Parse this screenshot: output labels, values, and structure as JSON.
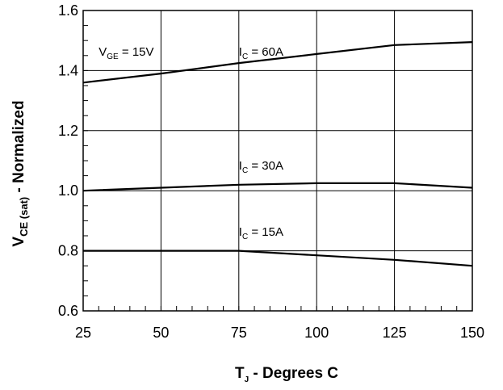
{
  "chart_data": {
    "type": "line",
    "xlabel": {
      "main": "T",
      "sub": "J",
      "rest": " - Degrees C"
    },
    "ylabel": {
      "main": "V",
      "sub": "CE (sat)",
      "rest": " - Normalized"
    },
    "xlim": [
      25,
      150
    ],
    "ylim": [
      0.6,
      1.6
    ],
    "xticks": [
      25,
      50,
      75,
      100,
      125,
      150
    ],
    "yticks": [
      0.6,
      0.8,
      1.0,
      1.2,
      1.4,
      1.6
    ],
    "ytick_labels": [
      "0.6",
      "0.8",
      "1.0",
      "1.2",
      "1.4",
      "1.6"
    ],
    "xminor_step": 5,
    "yminor_step": 0.05,
    "grid": true,
    "annotations": [
      {
        "id": "vge",
        "main": "V",
        "sub": "GE",
        "rest": " = 15V",
        "x": 30,
        "y": 1.45
      },
      {
        "id": "ic60",
        "main": "I",
        "sub": "C",
        "rest": " = 60A",
        "x": 75,
        "y": 1.45
      },
      {
        "id": "ic30",
        "main": "I",
        "sub": "C",
        "rest": " = 30A",
        "x": 75,
        "y": 1.07
      },
      {
        "id": "ic15",
        "main": "I",
        "sub": "C",
        "rest": " = 15A",
        "x": 75,
        "y": 0.85
      }
    ],
    "series": [
      {
        "id": "ic60",
        "x": [
          25,
          50,
          75,
          100,
          125,
          150
        ],
        "y": [
          1.36,
          1.39,
          1.425,
          1.455,
          1.485,
          1.495
        ]
      },
      {
        "id": "ic30",
        "x": [
          25,
          50,
          75,
          100,
          125,
          150
        ],
        "y": [
          1.0,
          1.01,
          1.02,
          1.025,
          1.025,
          1.01
        ]
      },
      {
        "id": "ic15",
        "x": [
          25,
          50,
          75,
          100,
          125,
          150
        ],
        "y": [
          0.8,
          0.8,
          0.8,
          0.785,
          0.77,
          0.75
        ]
      }
    ]
  }
}
